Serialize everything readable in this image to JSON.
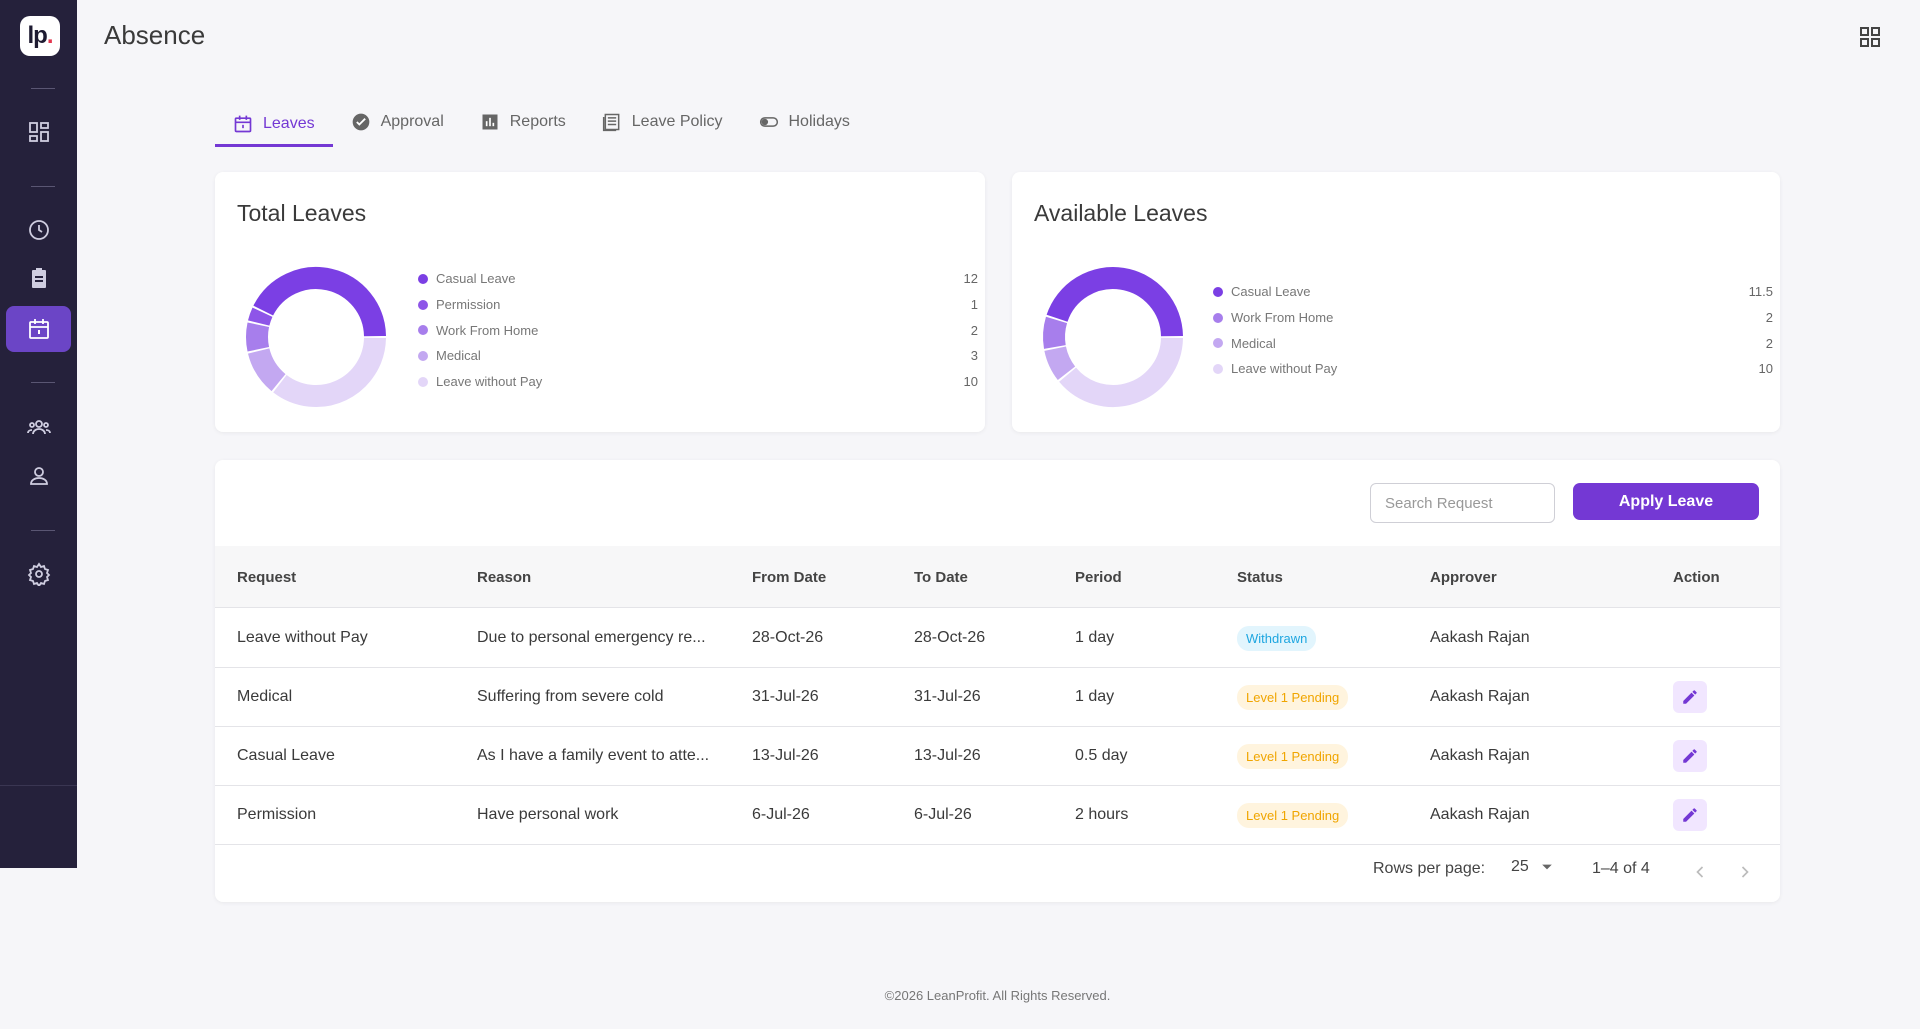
{
  "app": {
    "title": "Absence",
    "logo_text": "lp",
    "logo_dot": "."
  },
  "sidebar": {
    "items": [
      {
        "name": "dashboard-icon"
      },
      {
        "name": "clock-icon"
      },
      {
        "name": "clipboard-icon"
      },
      {
        "name": "calendar-icon",
        "active": true
      },
      {
        "name": "team-icon"
      },
      {
        "name": "user-icon"
      },
      {
        "name": "settings-icon"
      }
    ]
  },
  "tabs": [
    {
      "label": "Leaves",
      "icon": "calendar-icon",
      "active": true
    },
    {
      "label": "Approval",
      "icon": "badge-check-icon"
    },
    {
      "label": "Reports",
      "icon": "bar-chart-icon"
    },
    {
      "label": "Leave Policy",
      "icon": "document-icon"
    },
    {
      "label": "Holidays",
      "icon": "toggle-icon"
    }
  ],
  "total_leaves": {
    "title": "Total Leaves",
    "legend": [
      {
        "label": "Casual Leave",
        "value": "12",
        "color": "#7b3fe4"
      },
      {
        "label": "Permission",
        "value": "1",
        "color": "#8e55e8"
      },
      {
        "label": "Work From Home",
        "value": "2",
        "color": "#a77eec"
      },
      {
        "label": "Medical",
        "value": "3",
        "color": "#c3a8f1"
      },
      {
        "label": "Leave without Pay",
        "value": "10",
        "color": "#e3d6f8"
      }
    ]
  },
  "available_leaves": {
    "title": "Available Leaves",
    "legend": [
      {
        "label": "Casual Leave",
        "value": "11.5",
        "color": "#7b3fe4"
      },
      {
        "label": "Work From Home",
        "value": "2",
        "color": "#a77eec"
      },
      {
        "label": "Medical",
        "value": "2",
        "color": "#c3a8f1"
      },
      {
        "label": "Leave without Pay",
        "value": "10",
        "color": "#e3d6f8"
      }
    ]
  },
  "requests": {
    "search_placeholder": "Search Request",
    "apply_label": "Apply Leave",
    "columns": [
      "Request",
      "Reason",
      "From Date",
      "To Date",
      "Period",
      "Status",
      "Approver",
      "Action"
    ],
    "rows": [
      {
        "request": "Leave without Pay",
        "reason": "Due to personal emergency re...",
        "from": "28-Oct-26",
        "to": "28-Oct-26",
        "period": "1 day",
        "status": "Withdrawn",
        "status_type": "withdrawn",
        "approver": "Aakash Rajan",
        "editable": false
      },
      {
        "request": "Medical",
        "reason": "Suffering from severe cold",
        "from": "31-Jul-26",
        "to": "31-Jul-26",
        "period": "1 day",
        "status": "Level 1 Pending",
        "status_type": "pending",
        "approver": "Aakash Rajan",
        "editable": true
      },
      {
        "request": "Casual Leave",
        "reason": "As I have a family event to atte...",
        "from": "13-Jul-26",
        "to": "13-Jul-26",
        "period": "0.5 day",
        "status": "Level 1 Pending",
        "status_type": "pending",
        "approver": "Aakash Rajan",
        "editable": true
      },
      {
        "request": "Permission",
        "reason": "Have personal work",
        "from": "6-Jul-26",
        "to": "6-Jul-26",
        "period": "2 hours",
        "status": "Level 1 Pending",
        "status_type": "pending",
        "approver": "Aakash Rajan",
        "editable": true
      }
    ],
    "pagination": {
      "rows_per_page_label": "Rows per page:",
      "rows_per_page": "25",
      "range": "1–4 of 4"
    }
  },
  "footer": {
    "text": "©2026 LeanProfit. All Rights Reserved."
  }
}
